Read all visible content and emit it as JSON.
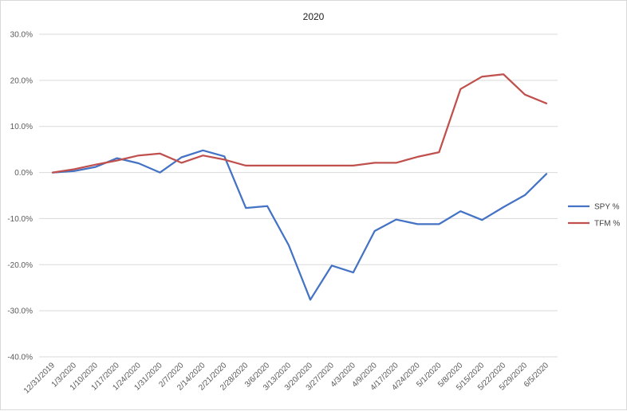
{
  "chart_data": {
    "type": "line",
    "title": "2020",
    "xlabel": "",
    "ylabel": "",
    "ylim": [
      -40,
      30
    ],
    "yticks": [
      "30.0%",
      "20.0%",
      "10.0%",
      "0.0%",
      "-10.0%",
      "-20.0%",
      "-30.0%",
      "-40.0%"
    ],
    "ytick_values": [
      30,
      20,
      10,
      0,
      -10,
      -20,
      -30,
      -40
    ],
    "grid": true,
    "legend_position": "right",
    "categories": [
      "12/31/2019",
      "1/3/2020",
      "1/10/2020",
      "1/17/2020",
      "1/24/2020",
      "1/31/2020",
      "2/7/2020",
      "2/14/2020",
      "2/21/2020",
      "2/28/2020",
      "3/6/2020",
      "3/13/2020",
      "3/20/2020",
      "3/27/2020",
      "4/3/2020",
      "4/9/2020",
      "4/17/2020",
      "4/24/2020",
      "5/1/2020",
      "5/8/2020",
      "5/15/2020",
      "5/22/2020",
      "5/29/2020",
      "6/5/2020"
    ],
    "series": [
      {
        "name": "SPY %",
        "color": "#4472c4",
        "values": [
          0.0,
          0.3,
          1.2,
          3.1,
          2.0,
          0.0,
          3.3,
          4.8,
          3.5,
          -7.7,
          -7.3,
          -15.8,
          -27.6,
          -20.2,
          -21.7,
          -12.7,
          -10.2,
          -11.2,
          -11.2,
          -8.4,
          -10.3,
          -7.5,
          -4.9,
          -0.3
        ]
      },
      {
        "name": "TFM %",
        "color": "#c0504d",
        "values": [
          0.0,
          0.7,
          1.7,
          2.6,
          3.7,
          4.1,
          2.1,
          3.7,
          2.8,
          1.5,
          1.5,
          1.5,
          1.5,
          1.5,
          1.5,
          2.1,
          2.1,
          3.4,
          4.4,
          18.1,
          20.8,
          21.3,
          16.9,
          15.0
        ]
      }
    ]
  }
}
